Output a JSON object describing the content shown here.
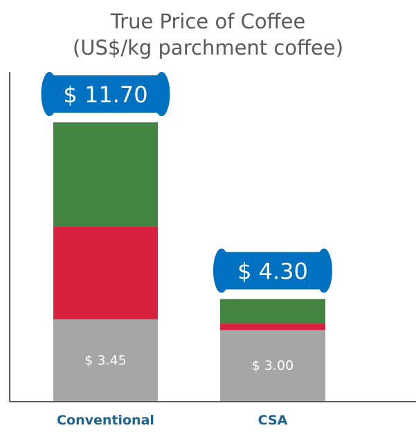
{
  "chart_data": {
    "type": "bar",
    "stacked": true,
    "title": "True Price of Coffee",
    "subtitle": "(US$/kg parchment coffee)",
    "categories": [
      "Conventional",
      "CSA"
    ],
    "totals": [
      "$ 11.70",
      "$ 4.30"
    ],
    "total_values": [
      11.7,
      4.3
    ],
    "series": [
      {
        "color": "#a6a6a6",
        "values": [
          3.45,
          3.0
        ],
        "labels": [
          "$ 3.45",
          "$ 3.00"
        ]
      },
      {
        "color": "#d9203f",
        "values": [
          3.88,
          0.27
        ]
      },
      {
        "color": "#438540",
        "values": [
          4.37,
          1.03
        ]
      }
    ],
    "ylim": [
      0,
      13.7
    ],
    "grid": false,
    "legend": "none",
    "colors": {
      "axis": "#595959",
      "category_label": "#1f6391",
      "callout": "#0070c0",
      "callout_edge": "#ffffff",
      "callout_text": "#ffffff",
      "bar_label": "#ffffff"
    }
  }
}
